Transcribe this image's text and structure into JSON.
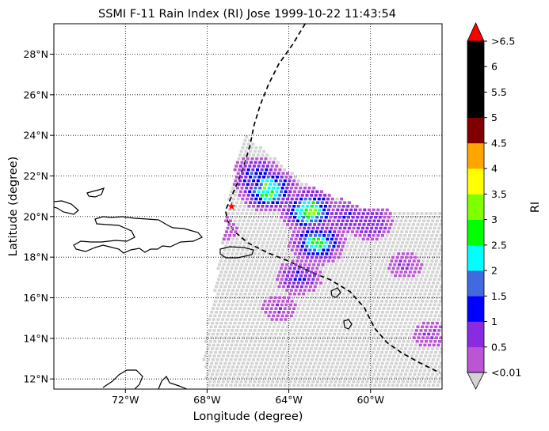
{
  "chart_data": {
    "type": "heatmap",
    "title": "SSMI F-11 Rain Index (RI) Jose 1999-10-22 11:43:54",
    "xlabel": "Longitude (degree)",
    "ylabel": "Latitude (degree)",
    "xlim": [
      -75.5,
      -56.5
    ],
    "ylim": [
      11.5,
      29.5
    ],
    "grid": true,
    "xticks": [
      {
        "value": -72,
        "label": "72°W"
      },
      {
        "value": -68,
        "label": "68°W"
      },
      {
        "value": -64,
        "label": "64°W"
      },
      {
        "value": -60,
        "label": "60°W"
      }
    ],
    "yticks": [
      {
        "value": 12,
        "label": "12°N"
      },
      {
        "value": 14,
        "label": "14°N"
      },
      {
        "value": 16,
        "label": "16°N"
      },
      {
        "value": 18,
        "label": "18°N"
      },
      {
        "value": 20,
        "label": "20°N"
      },
      {
        "value": 22,
        "label": "22°N"
      },
      {
        "value": 24,
        "label": "24°N"
      },
      {
        "value": 26,
        "label": "26°N"
      },
      {
        "value": 28,
        "label": "28°N"
      }
    ],
    "colorbar": {
      "label": "RI",
      "tick_labels": [
        "<0.01",
        "0.5",
        "1",
        "1.5",
        "2",
        "2.5",
        "3",
        "3.5",
        "4",
        "4.5",
        "5",
        "5.5",
        "6",
        ">6.5"
      ],
      "under_color": "#d3d3d3",
      "over_color": "#ff0000",
      "colors": [
        "#ba55d3",
        "#8a2be2",
        "#0000ff",
        "#4169e1",
        "#00ffff",
        "#00ff00",
        "#7fff00",
        "#ffff00",
        "#ffa500",
        "#800000",
        "#000000",
        "#000000",
        "#000000"
      ]
    },
    "swath": {
      "top_left": [
        -66.2,
        24.1
      ],
      "left_edge": [
        [
          -66.2,
          24.1
        ],
        [
          -66.6,
          22.5
        ],
        [
          -67.0,
          20.5
        ],
        [
          -67.3,
          18.5
        ],
        [
          -67.6,
          16.5
        ],
        [
          -68.0,
          14.6
        ],
        [
          -68.2,
          13.0
        ],
        [
          -68.0,
          11.5
        ]
      ],
      "right_edge": [
        [
          -65.5,
          23.5
        ],
        [
          -63.0,
          21.5
        ],
        [
          -60.5,
          20.5
        ],
        [
          -58.0,
          20.2
        ],
        [
          -56.5,
          20.2
        ]
      ],
      "bottom_right": [
        -56.5,
        11.5
      ]
    },
    "storm_track": [
      [
        -63.2,
        29.5
      ],
      [
        -63.8,
        28.5
      ],
      [
        -64.5,
        27.5
      ],
      [
        -65.0,
        26.5
      ],
      [
        -65.4,
        25.5
      ],
      [
        -65.7,
        24.5
      ],
      [
        -65.9,
        23.5
      ],
      [
        -66.2,
        22.5
      ],
      [
        -66.5,
        21.7
      ],
      [
        -66.8,
        21.0
      ],
      [
        -67.1,
        20.3
      ],
      [
        -67.0,
        19.8
      ],
      [
        -66.7,
        19.3
      ],
      [
        -66.0,
        18.7
      ],
      [
        -65.0,
        18.2
      ],
      [
        -64.0,
        17.8
      ],
      [
        -63.0,
        17.3
      ],
      [
        -62.0,
        16.9
      ],
      [
        -61.0,
        16.3
      ],
      [
        -60.3,
        15.5
      ],
      [
        -59.8,
        14.5
      ],
      [
        -59.2,
        13.8
      ],
      [
        -58.5,
        13.3
      ],
      [
        -57.6,
        12.8
      ],
      [
        -56.6,
        12.3
      ]
    ],
    "storm_center": [
      -66.8,
      20.5
    ],
    "rain_clusters": [
      {
        "lon": -65.0,
        "lat": 21.3,
        "value": 3.0
      },
      {
        "lon": -63.0,
        "lat": 20.3,
        "value": 3.0
      },
      {
        "lon": -62.6,
        "lat": 18.7,
        "value": 2.5
      },
      {
        "lon": -65.6,
        "lat": 22.0,
        "value": 1.5
      },
      {
        "lon": -61.2,
        "lat": 20.0,
        "value": 1.0
      },
      {
        "lon": -60.0,
        "lat": 19.7,
        "value": 1.0
      },
      {
        "lon": -63.5,
        "lat": 17.0,
        "value": 1.0
      },
      {
        "lon": -58.3,
        "lat": 17.6,
        "value": 0.5
      },
      {
        "lon": -57.1,
        "lat": 14.2,
        "value": 0.5
      },
      {
        "lon": -67.4,
        "lat": 19.4,
        "value": 0.5
      },
      {
        "lon": -64.5,
        "lat": 15.5,
        "value": 0.5
      }
    ]
  }
}
